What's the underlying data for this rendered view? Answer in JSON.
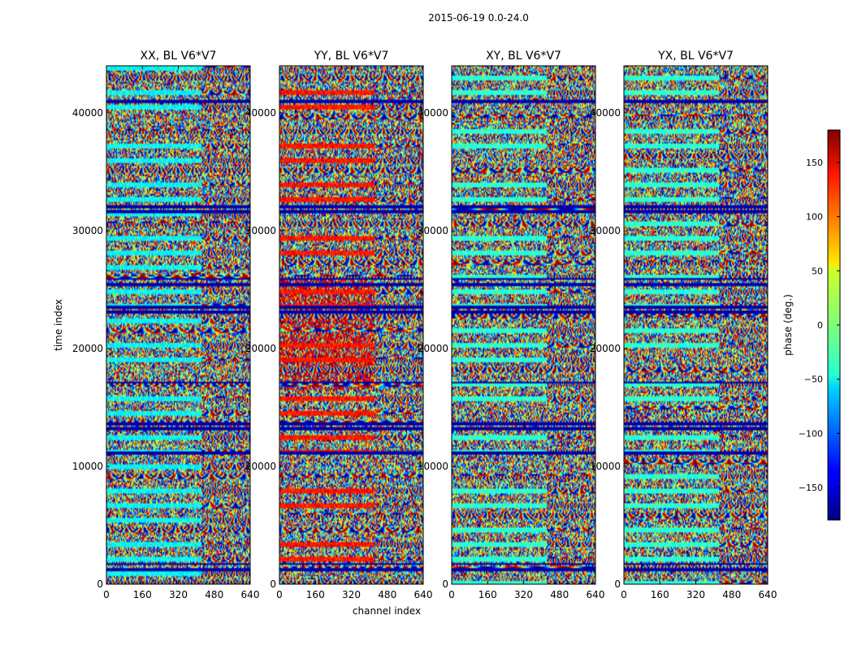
{
  "chart_data": {
    "type": "heatmap",
    "suptitle": "2015-06-19 0.0-24.0",
    "xlabel": "channel index",
    "ylabel": "time index",
    "xlim": [
      0,
      640
    ],
    "ylim": [
      0,
      44000
    ],
    "xticks": [
      0,
      160,
      320,
      480,
      640
    ],
    "yticks": [
      0,
      10000,
      20000,
      30000,
      40000
    ],
    "xtick_labels": [
      "0",
      "160",
      "320",
      "480",
      "640"
    ],
    "ytick_labels": [
      "0",
      "10000",
      "20000",
      "30000",
      "40000"
    ],
    "panels": [
      {
        "title": "XX, BL V6*V7",
        "pol": "XX"
      },
      {
        "title": "YY, BL V6*V7",
        "pol": "YY"
      },
      {
        "title": "XY, BL V6*V7",
        "pol": "XY"
      },
      {
        "title": "YX, BL V6*V7",
        "pol": "YX"
      }
    ],
    "colorbar": {
      "label": "phase (deg.)",
      "range": [
        -180,
        180
      ],
      "ticks": [
        150,
        100,
        50,
        0,
        -50,
        -100,
        -150
      ],
      "tick_labels": [
        "150",
        "100",
        "50",
        "0",
        "−50",
        "−100",
        "−150"
      ],
      "colormap": "jet"
    }
  }
}
